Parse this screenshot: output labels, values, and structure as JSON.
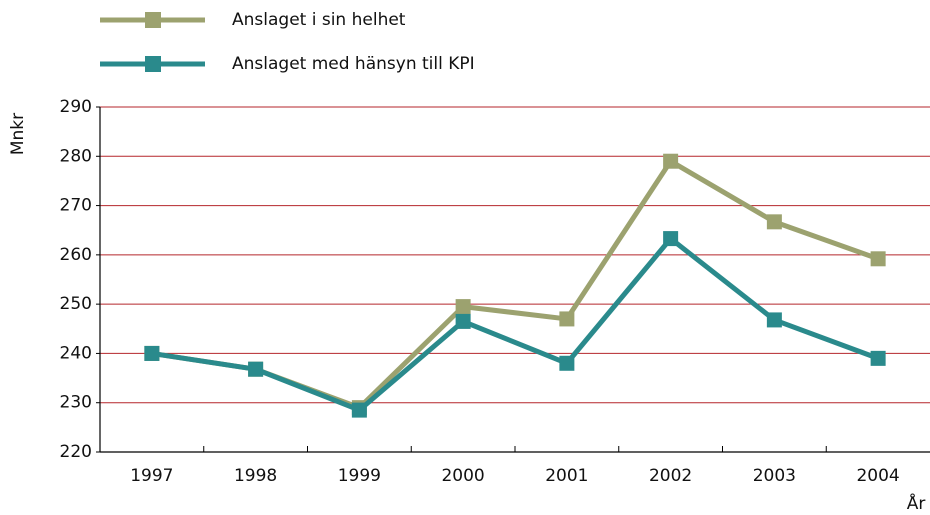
{
  "chart_data": {
    "type": "line",
    "categories": [
      "1997",
      "1998",
      "1999",
      "2000",
      "2001",
      "2002",
      "2003",
      "2004"
    ],
    "series": [
      {
        "name": "Anslaget i sin helhet",
        "color": "#9ca26f",
        "values": [
          240,
          236.8,
          229,
          249.5,
          247,
          279,
          266.7,
          259.2
        ]
      },
      {
        "name": "Anslaget med hänsyn till KPI",
        "color": "#2a8a8c",
        "values": [
          240,
          236.8,
          228.5,
          246.5,
          238,
          263.3,
          246.8,
          239
        ]
      }
    ],
    "y_label": "Mnkr",
    "x_label": "År",
    "ylim": [
      220,
      290
    ],
    "yticks": [
      220,
      230,
      240,
      250,
      260,
      270,
      280,
      290
    ],
    "grid": true,
    "grid_color": "#b5262b"
  }
}
